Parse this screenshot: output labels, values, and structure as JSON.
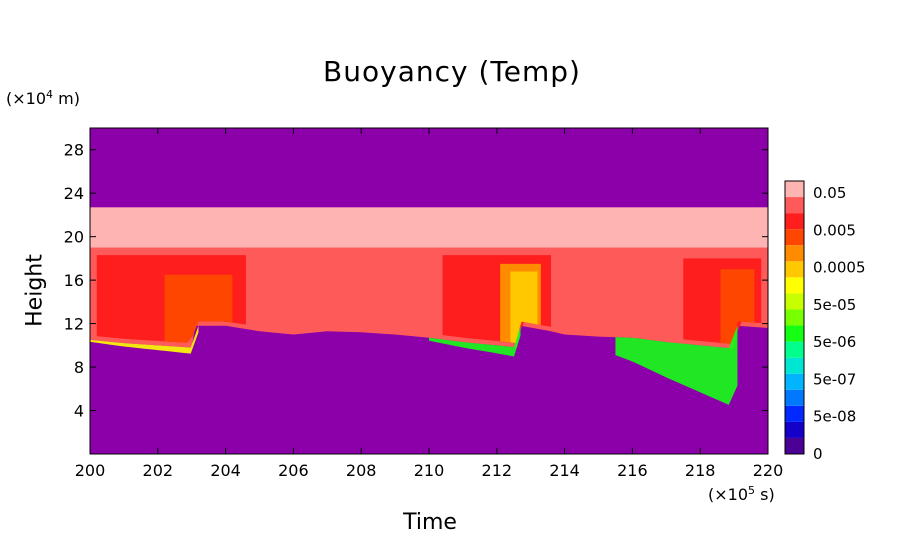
{
  "chart_data": {
    "type": "heatmap",
    "title": "Buoyancy (Temp)",
    "xlabel": "Time",
    "ylabel": "Height",
    "x_unit": {
      "prefix": "(×10",
      "exp": "5",
      "suffix": " s)"
    },
    "y_unit": {
      "prefix": "(×10",
      "exp": "4",
      "suffix": " m)"
    },
    "xlim": [
      200,
      220
    ],
    "ylim": [
      0,
      30
    ],
    "xticks": [
      200,
      202,
      204,
      206,
      208,
      210,
      212,
      214,
      216,
      218,
      220
    ],
    "yticks": [
      4,
      8,
      12,
      16,
      20,
      24,
      28
    ],
    "colorbar": {
      "label_values": [
        "0.05",
        "0.005",
        "0.0005",
        "5e-05",
        "5e-06",
        "5e-07",
        "5e-08",
        "0"
      ],
      "colors": [
        "#4b0096",
        "#1400c8",
        "#0028ff",
        "#0078ff",
        "#00b4ff",
        "#00e6d2",
        "#00ff8c",
        "#14ff14",
        "#78ff00",
        "#c8ff00",
        "#ffff00",
        "#ffc800",
        "#ff8c00",
        "#ff4600",
        "#ff1e1e",
        "#ff5a5a",
        "#ffb4b4"
      ]
    },
    "background_color": "#8c00aa",
    "layers": {
      "upper_band": {
        "color": "#ffb4b4",
        "top": 22.7,
        "bottom": 19.0
      },
      "main_band": {
        "color": "#ff5a5a",
        "top": 19.0
      },
      "base": [
        [
          200,
          10.5
        ],
        [
          201,
          10.2
        ],
        [
          202,
          10.0
        ],
        [
          203,
          9.8
        ],
        [
          203.1,
          11.8
        ],
        [
          204,
          11.8
        ],
        [
          205,
          11.3
        ],
        [
          206,
          11.0
        ],
        [
          207,
          11.3
        ],
        [
          208,
          11.2
        ],
        [
          209,
          11.0
        ],
        [
          210,
          10.7
        ],
        [
          211,
          10.3
        ],
        [
          212,
          10.0
        ],
        [
          212.6,
          9.8
        ],
        [
          212.7,
          11.8
        ],
        [
          213.6,
          11.3
        ],
        [
          214,
          11.0
        ],
        [
          215,
          10.8
        ],
        [
          216,
          10.7
        ],
        [
          217,
          10.3
        ],
        [
          218,
          10.0
        ],
        [
          219,
          9.7
        ],
        [
          219.1,
          11.8
        ],
        [
          220,
          11.6
        ]
      ],
      "warm_cores": [
        {
          "color": "#ff1e1e",
          "x_range": [
            200.2,
            204.6
          ],
          "top": 18.3
        },
        {
          "color": "#ff4600",
          "x_range": [
            202.2,
            204.2
          ],
          "top": 16.5
        },
        {
          "color": "#ff1e1e",
          "x_range": [
            210.4,
            213.6
          ],
          "top": 18.3
        },
        {
          "color": "#ff8c00",
          "x_range": [
            212.1,
            213.3
          ],
          "top": 17.5
        },
        {
          "color": "#ffc800",
          "x_range": [
            212.4,
            213.2
          ],
          "top": 16.8
        },
        {
          "color": "#ff1e1e",
          "x_range": [
            217.5,
            219.8
          ],
          "top": 18.0
        },
        {
          "color": "#ff4600",
          "x_range": [
            218.6,
            219.6
          ],
          "top": 17.0
        }
      ],
      "moist_fringe": [
        {
          "color": "#ffff00",
          "x_range": [
            200,
            203.2
          ],
          "top": 10.5,
          "depth": 0.6
        },
        {
          "color": "#14ff14",
          "x_range": [
            210,
            212.7
          ],
          "top": 10.7,
          "depth": 0.9
        },
        {
          "color": "#14ff14",
          "x_range": [
            215.5,
            219.1
          ],
          "top": 10.5,
          "depth": 5.5
        }
      ]
    }
  }
}
